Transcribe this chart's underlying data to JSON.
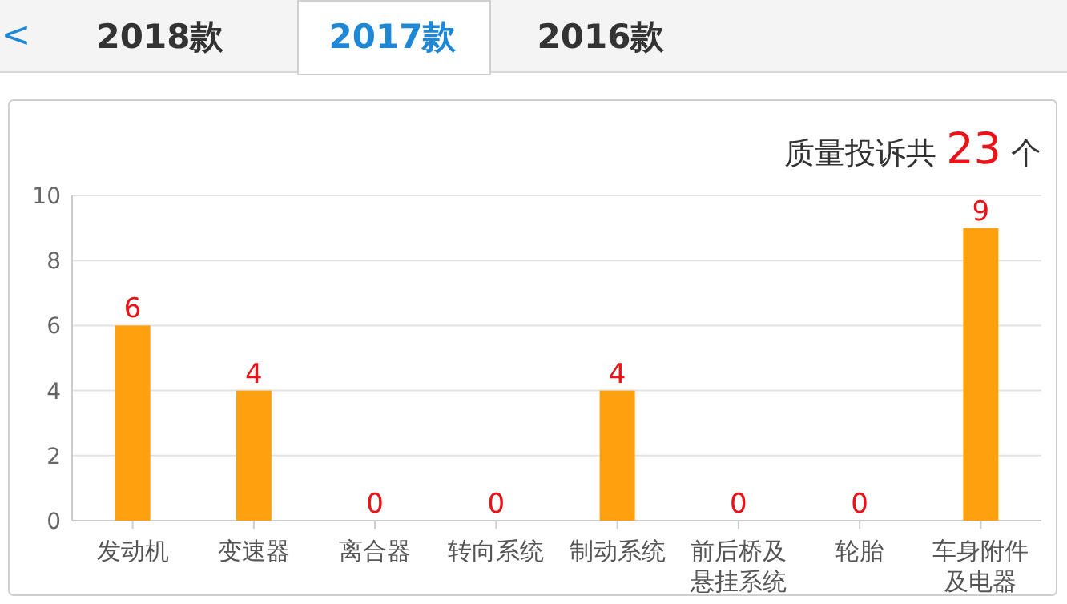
{
  "chart_data": {
    "type": "bar",
    "title": "质量投诉共 23 个",
    "annotations": [
      "<",
      "2018款",
      "2017款",
      "2016款"
    ],
    "categories": [
      "发动机",
      "变速器",
      "离合器",
      "转向系统",
      "制动系统",
      "前后桥及悬挂系统",
      "轮胎",
      "车身附件及电器"
    ],
    "values": [
      6,
      4,
      0,
      0,
      4,
      0,
      0,
      9
    ],
    "color": "#ffa10f",
    "data_labels": true,
    "ylim": [
      0,
      10
    ],
    "yticks": [
      0,
      2,
      4,
      6,
      8,
      10
    ],
    "grid": "y"
  }
}
